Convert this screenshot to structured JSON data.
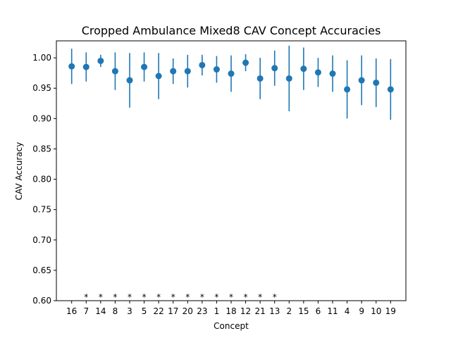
{
  "chart_data": {
    "type": "scatter",
    "title": "Cropped Ambulance Mixed8 CAV Concept Accuracies",
    "xlabel": "Concept",
    "ylabel": "CAV Accuracy",
    "ylim": [
      0.6,
      1.028
    ],
    "yticks": [
      "0.60",
      "0.65",
      "0.70",
      "0.75",
      "0.80",
      "0.85",
      "0.90",
      "0.95",
      "1.00"
    ],
    "grid": false,
    "color": "#1f77b4",
    "categories": [
      "16",
      "7",
      "14",
      "8",
      "3",
      "5",
      "22",
      "17",
      "20",
      "23",
      "1",
      "18",
      "12",
      "21",
      "13",
      "2",
      "15",
      "6",
      "11",
      "4",
      "9",
      "10",
      "19"
    ],
    "values": [
      0.986,
      0.985,
      0.995,
      0.978,
      0.963,
      0.985,
      0.97,
      0.978,
      0.978,
      0.988,
      0.981,
      0.974,
      0.992,
      0.966,
      0.983,
      0.966,
      0.982,
      0.976,
      0.974,
      0.948,
      0.963,
      0.959,
      0.948
    ],
    "errors": [
      0.029,
      0.024,
      0.01,
      0.031,
      0.045,
      0.024,
      0.038,
      0.021,
      0.027,
      0.017,
      0.022,
      0.03,
      0.014,
      0.034,
      0.029,
      0.054,
      0.035,
      0.024,
      0.03,
      0.048,
      0.041,
      0.04,
      0.05
    ],
    "significance_marker": "*",
    "significant": [
      false,
      true,
      true,
      true,
      true,
      true,
      true,
      true,
      true,
      true,
      true,
      true,
      true,
      true,
      true,
      false,
      false,
      false,
      false,
      false,
      false,
      false,
      false
    ]
  }
}
